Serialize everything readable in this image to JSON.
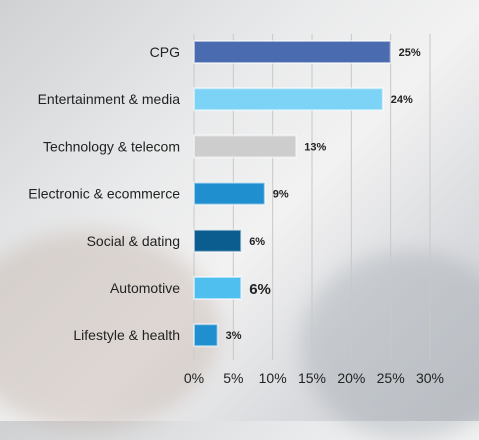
{
  "chart_data": {
    "type": "bar",
    "orientation": "horizontal",
    "title": "",
    "xlabel": "",
    "ylabel": "",
    "categories": [
      "CPG",
      "Entertainment & media",
      "Technology & telecom",
      "Electronic & ecommerce",
      "Social & dating",
      "Automotive",
      "Lifestyle & health"
    ],
    "values": [
      25,
      24,
      13,
      9,
      6,
      6,
      3
    ],
    "value_labels": [
      "25%",
      "24%",
      "13%",
      "9%",
      "6%",
      "6%",
      "3%"
    ],
    "colors": [
      "#4a6bb0",
      "#7dd3f5",
      "#cdcdcd",
      "#1f8fd0",
      "#0b5c8f",
      "#4fbfef",
      "#1f8fd0"
    ],
    "xlim": [
      0,
      30
    ],
    "xticks": [
      "0%",
      "5%",
      "10%",
      "15%",
      "20%",
      "25%",
      "30%"
    ],
    "grid": true,
    "legend": "none"
  }
}
